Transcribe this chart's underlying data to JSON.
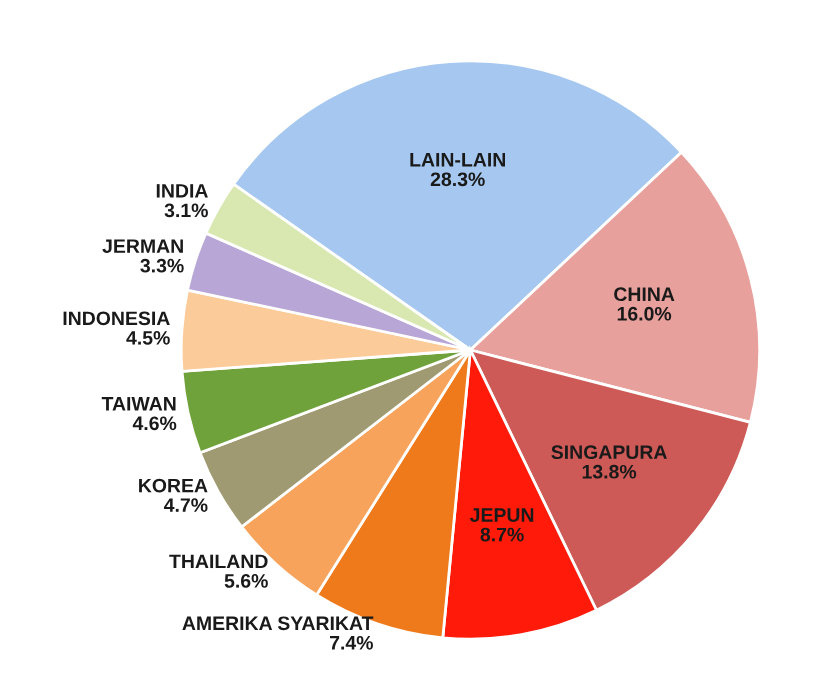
{
  "chart_data": {
    "type": "pie",
    "categories": [
      "LAIN-LAIN",
      "CHINA",
      "SINGAPURA",
      "JEPUN",
      "AMERIKA SYARIKAT",
      "THAILAND",
      "KOREA",
      "TAIWAN",
      "INDONESIA",
      "JERMAN",
      "INDIA"
    ],
    "values": [
      28.3,
      16.0,
      13.8,
      8.7,
      7.4,
      5.6,
      4.7,
      4.6,
      4.5,
      3.3,
      3.1
    ],
    "colors": [
      "#a6c8f0",
      "#e8a09c",
      "#cd5a56",
      "#ff1a0a",
      "#ee7a1c",
      "#f7a35c",
      "#a09a72",
      "#70a23c",
      "#fccb9a",
      "#b8a6d6",
      "#d8e8b0"
    ],
    "value_labels": [
      "28.3%",
      "16.0%",
      "13.8%",
      "8.7%",
      "7.4%",
      "5.6%",
      "4.7%",
      "4.6%",
      "4.5%",
      "3.3%",
      "3.1%"
    ]
  }
}
